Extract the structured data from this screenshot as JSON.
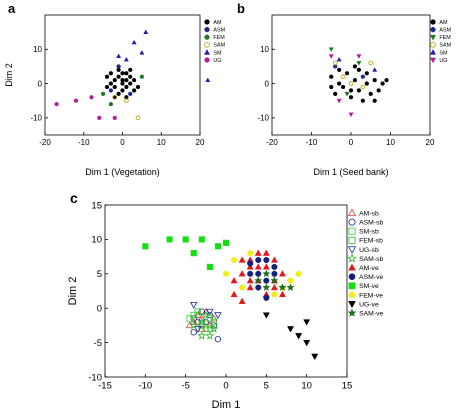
{
  "colors": {
    "AM": "#000000",
    "ASM": "#1c2a8f",
    "FEM": "#1f7a1f",
    "SAM": "#b8a000",
    "SM": "#2a1fa6",
    "UG": "#b01e9a",
    "AM-sb": "#e0413c",
    "ASM-sb": "#1c2a8f",
    "SM-sb": "#33cc33",
    "FEM-sb": "#2bb52b",
    "UG-sb": "#1c2a8f",
    "SAM-sb": "#2bb52b",
    "AM-ve": "#dd1c1c",
    "ASM-ve": "#16207a",
    "SM-ve": "#14dd14",
    "FEM-ve": "#f2ee1a",
    "UG-ve": "#000000",
    "SAM-ve": "#1e6e1e"
  },
  "chart_data": [
    {
      "panel": "a",
      "type": "scatter",
      "xlabel": "Dim 1 (Vegetation)",
      "ylabel": "Dim 2",
      "xlim": [
        -20,
        20
      ],
      "ylim": [
        -15,
        20
      ],
      "xticks": [
        -20,
        -10,
        0,
        10,
        20
      ],
      "yticks": [
        -10,
        0,
        10
      ],
      "legend_position": "right",
      "series": [
        {
          "name": "AM",
          "marker": "circle",
          "filled": true,
          "points": [
            [
              -4,
              2
            ],
            [
              -3,
              3
            ],
            [
              -2,
              1
            ],
            [
              -1,
              2
            ],
            [
              0,
              1
            ],
            [
              1,
              3
            ],
            [
              2,
              2
            ],
            [
              -2,
              -1
            ],
            [
              0,
              -2
            ],
            [
              1,
              -1
            ],
            [
              2,
              0
            ],
            [
              3,
              -2
            ],
            [
              -1,
              -3
            ],
            [
              -3,
              0
            ],
            [
              0,
              0
            ],
            [
              1,
              1
            ],
            [
              2,
              4
            ],
            [
              -1,
              4
            ],
            [
              3,
              1
            ],
            [
              -2,
              -4
            ],
            [
              1,
              -4
            ],
            [
              4,
              -1
            ],
            [
              0,
              3
            ],
            [
              -4,
              -1
            ]
          ]
        },
        {
          "name": "ASM",
          "marker": "circle",
          "filled": true,
          "points": [
            [
              -3,
              -2
            ],
            [
              2,
              -3
            ],
            [
              -1,
              5
            ]
          ]
        },
        {
          "name": "FEM",
          "marker": "circle",
          "filled": true,
          "points": [
            [
              -5,
              -3
            ],
            [
              5,
              2
            ],
            [
              -3,
              -6
            ]
          ]
        },
        {
          "name": "SAM",
          "marker": "circle",
          "filled": false,
          "points": [
            [
              -2,
              -4
            ],
            [
              1,
              -5
            ],
            [
              4,
              -10
            ]
          ]
        },
        {
          "name": "SM",
          "marker": "triangle-up",
          "filled": true,
          "points": [
            [
              3,
              12
            ],
            [
              5,
              9
            ],
            [
              1,
              7
            ],
            [
              22,
              1
            ],
            [
              6,
              15
            ],
            [
              -1,
              8
            ]
          ]
        },
        {
          "name": "UG",
          "marker": "circle",
          "filled": true,
          "points": [
            [
              -17,
              -6
            ],
            [
              -12,
              -5
            ],
            [
              -6,
              -10
            ],
            [
              -2,
              -10
            ],
            [
              -8,
              -4
            ]
          ]
        }
      ]
    },
    {
      "panel": "b",
      "type": "scatter",
      "xlabel": "Dim 1 (Seed bank)",
      "ylabel": "",
      "xlim": [
        -20,
        20
      ],
      "ylim": [
        -15,
        20
      ],
      "xticks": [
        -20,
        -10,
        0,
        10,
        20
      ],
      "yticks": [
        -10,
        0,
        10
      ],
      "legend_position": "right",
      "series": [
        {
          "name": "AM",
          "marker": "circle",
          "filled": true,
          "points": [
            [
              -5,
              2
            ],
            [
              -3,
              0
            ],
            [
              -1,
              3
            ],
            [
              1,
              1
            ],
            [
              2,
              -2
            ],
            [
              4,
              0
            ],
            [
              6,
              1
            ],
            [
              8,
              0
            ],
            [
              -4,
              -3
            ],
            [
              0,
              -4
            ],
            [
              3,
              -5
            ],
            [
              5,
              -3
            ],
            [
              7,
              -2
            ],
            [
              -2,
              -1
            ],
            [
              1,
              5
            ],
            [
              4,
              3
            ],
            [
              9,
              1
            ],
            [
              -3,
              4
            ],
            [
              2,
              4
            ],
            [
              6,
              -5
            ],
            [
              0,
              -2
            ],
            [
              -5,
              -1
            ]
          ]
        },
        {
          "name": "ASM",
          "marker": "circle",
          "filled": true,
          "points": [
            [
              -4,
              5
            ],
            [
              3,
              2
            ]
          ]
        },
        {
          "name": "FEM",
          "marker": "triangle-down",
          "filled": true,
          "points": [
            [
              -5,
              10
            ],
            [
              2,
              6
            ],
            [
              -1,
              -3
            ]
          ]
        },
        {
          "name": "SAM",
          "marker": "circle",
          "filled": false,
          "points": [
            [
              -4,
              6
            ],
            [
              0,
              0
            ],
            [
              3,
              -1
            ],
            [
              5,
              6
            ],
            [
              -2,
              2
            ]
          ]
        },
        {
          "name": "SM",
          "marker": "triangle-up",
          "filled": true,
          "points": [
            [
              -3,
              7
            ],
            [
              6,
              4
            ]
          ]
        },
        {
          "name": "UG",
          "marker": "triangle-down",
          "filled": true,
          "points": [
            [
              -5,
              8
            ],
            [
              0,
              -9
            ],
            [
              -3,
              -5
            ],
            [
              2,
              8
            ]
          ]
        }
      ]
    },
    {
      "panel": "c",
      "type": "scatter",
      "xlabel": "Dim 1",
      "ylabel": "Dim 2",
      "xlim": [
        -15,
        15
      ],
      "ylim": [
        -10,
        15
      ],
      "xticks": [
        -15,
        -10,
        -5,
        0,
        5,
        10,
        15
      ],
      "yticks": [
        -10,
        -5,
        0,
        5,
        10,
        15
      ],
      "legend_position": "right",
      "series": [
        {
          "name": "AM-sb",
          "marker": "triangle-up",
          "filled": false,
          "points": [
            [
              -4,
              -2
            ],
            [
              -3,
              -1.5
            ],
            [
              -2,
              -2.5
            ],
            [
              -3.5,
              -1
            ],
            [
              -2.5,
              -0.5
            ],
            [
              -1.5,
              -1.5
            ],
            [
              -4.5,
              -2.5
            ],
            [
              -3,
              -3
            ]
          ]
        },
        {
          "name": "ASM-sb",
          "marker": "circle",
          "filled": false,
          "points": [
            [
              -3.5,
              -2
            ],
            [
              -2.5,
              -2
            ],
            [
              -1.5,
              -2.5
            ],
            [
              -4,
              -1.5
            ],
            [
              -3,
              -0.5
            ],
            [
              -2,
              -1
            ],
            [
              -1,
              -4.5
            ],
            [
              -4,
              -3.5
            ],
            [
              -3,
              -2.5
            ]
          ]
        },
        {
          "name": "SM-sb",
          "marker": "square",
          "filled": false,
          "points": [
            [
              -4,
              -1
            ],
            [
              -3,
              -2.5
            ],
            [
              -2,
              -1.5
            ],
            [
              -4.5,
              -1.5
            ],
            [
              -2.5,
              -3
            ]
          ]
        },
        {
          "name": "FEM-sb",
          "marker": "square",
          "filled": false,
          "points": [
            [
              -3.5,
              -0.5
            ],
            [
              -2,
              -3
            ],
            [
              -1.5,
              -2
            ]
          ]
        },
        {
          "name": "UG-sb",
          "marker": "triangle-down",
          "filled": false,
          "points": [
            [
              -4,
              0.5
            ],
            [
              -3.5,
              -3
            ],
            [
              -2,
              -0.5
            ],
            [
              -1,
              -1
            ]
          ]
        },
        {
          "name": "SAM-sb",
          "marker": "star",
          "filled": false,
          "points": [
            [
              -3,
              -2
            ],
            [
              -2.5,
              -1
            ],
            [
              -1.5,
              -3
            ],
            [
              -4,
              -2.5
            ],
            [
              -3,
              -4
            ],
            [
              -2,
              -4
            ]
          ]
        },
        {
          "name": "AM-ve",
          "marker": "triangle-up",
          "filled": true,
          "points": [
            [
              2,
              5
            ],
            [
              3,
              7
            ],
            [
              4,
              4
            ],
            [
              5,
              6
            ],
            [
              6,
              3
            ],
            [
              3,
              3
            ],
            [
              1,
              4
            ],
            [
              7,
              5
            ],
            [
              4,
              8
            ],
            [
              5,
              2
            ],
            [
              6,
              7
            ],
            [
              2,
              1
            ],
            [
              3,
              6
            ],
            [
              6,
              4
            ],
            [
              1,
              2
            ],
            [
              4,
              6
            ],
            [
              5,
              8
            ],
            [
              7,
              2
            ],
            [
              2,
              7
            ],
            [
              3,
              4
            ]
          ]
        },
        {
          "name": "ASM-ve",
          "marker": "circle",
          "filled": true,
          "points": [
            [
              3,
              5
            ],
            [
              4,
              7
            ],
            [
              5,
              4
            ],
            [
              6,
              6
            ],
            [
              4,
              3
            ],
            [
              5,
              1.5
            ],
            [
              6,
              5
            ],
            [
              3,
              6.5
            ],
            [
              5,
              7
            ],
            [
              4,
              5
            ]
          ]
        },
        {
          "name": "SM-ve",
          "marker": "square",
          "filled": true,
          "points": [
            [
              -10,
              9
            ],
            [
              -7,
              10
            ],
            [
              -5,
              10
            ],
            [
              -3,
              10
            ],
            [
              -1,
              9
            ],
            [
              0,
              9.5
            ],
            [
              -4,
              8
            ],
            [
              -2,
              6
            ]
          ]
        },
        {
          "name": "FEM-ve",
          "marker": "circle",
          "filled": true,
          "points": [
            [
              1,
              7
            ],
            [
              2,
              3
            ],
            [
              7,
              3
            ],
            [
              8,
              4
            ],
            [
              6,
              2
            ],
            [
              9,
              5
            ],
            [
              3,
              8
            ],
            [
              0,
              5
            ]
          ]
        },
        {
          "name": "UG-ve",
          "marker": "triangle-down",
          "filled": true,
          "points": [
            [
              5,
              -1
            ],
            [
              9,
              -4
            ],
            [
              10,
              -5
            ],
            [
              11,
              -7
            ],
            [
              10,
              -2
            ],
            [
              8,
              -3
            ]
          ]
        },
        {
          "name": "SAM-ve",
          "marker": "star",
          "filled": true,
          "points": [
            [
              4,
              4
            ],
            [
              5,
              3
            ],
            [
              6,
              4
            ],
            [
              7,
              3
            ],
            [
              5,
              5
            ],
            [
              8,
              3
            ]
          ]
        }
      ]
    }
  ]
}
